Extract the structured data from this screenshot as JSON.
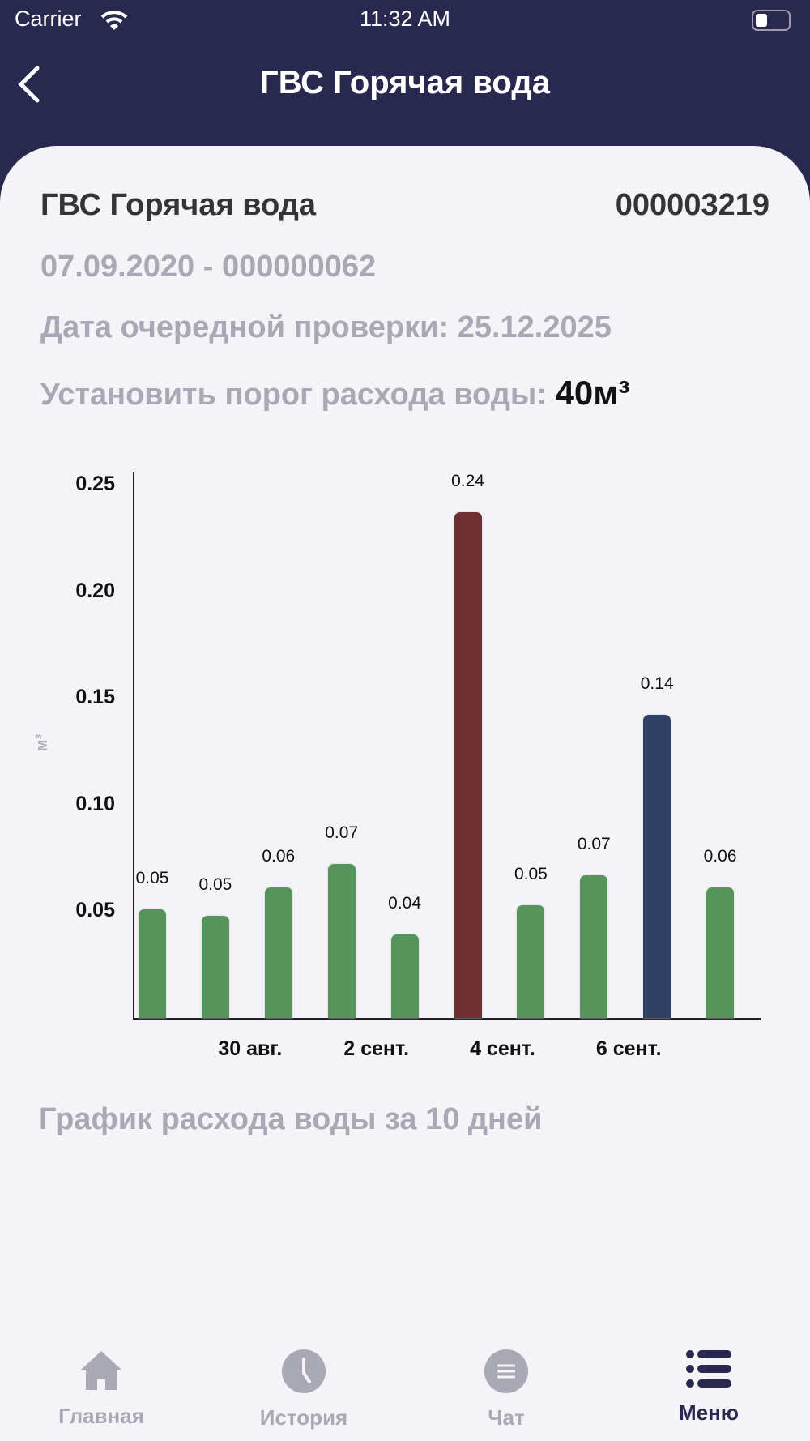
{
  "status_bar": {
    "carrier": "Carrier",
    "time": "11:32 AM"
  },
  "header": {
    "title": "ГВС Горячая вода"
  },
  "meter": {
    "name": "ГВС Горячая вода",
    "number": "000003219",
    "install": "07.09.2020 - 000000062",
    "next_check": "Дата очередной проверки: 25.12.2025",
    "threshold_label": "Установить порог расхода воды:",
    "threshold_value": "40м³"
  },
  "chart_data": {
    "type": "bar",
    "ylabel": "м³",
    "ylim": [
      0,
      0.25
    ],
    "yticks": [
      "0.05",
      "0.10",
      "0.15",
      "0.20",
      "0.25"
    ],
    "x_tick_labels": [
      "30 авг.",
      "2 сент.",
      "4 сент.",
      "6 сент."
    ],
    "values": [
      0.051,
      0.048,
      0.061,
      0.072,
      0.039,
      0.237,
      0.053,
      0.067,
      0.142,
      0.061
    ],
    "value_labels": [
      "0.05",
      "0.05",
      "0.06",
      "0.07",
      "0.04",
      "0.24",
      "0.05",
      "0.07",
      "0.14",
      "0.06"
    ],
    "colors": [
      "#55955c",
      "#55955c",
      "#55955c",
      "#55955c",
      "#55955c",
      "#6e2f31",
      "#55955c",
      "#55955c",
      "#2f4266",
      "#55955c"
    ],
    "caption": "График расхода воды за 10 дней"
  },
  "tabs": [
    {
      "label": "Главная",
      "icon": "home-icon"
    },
    {
      "label": "История",
      "icon": "clock-icon"
    },
    {
      "label": "Чат",
      "icon": "chat-icon"
    },
    {
      "label": "Меню",
      "icon": "menu-icon"
    }
  ]
}
